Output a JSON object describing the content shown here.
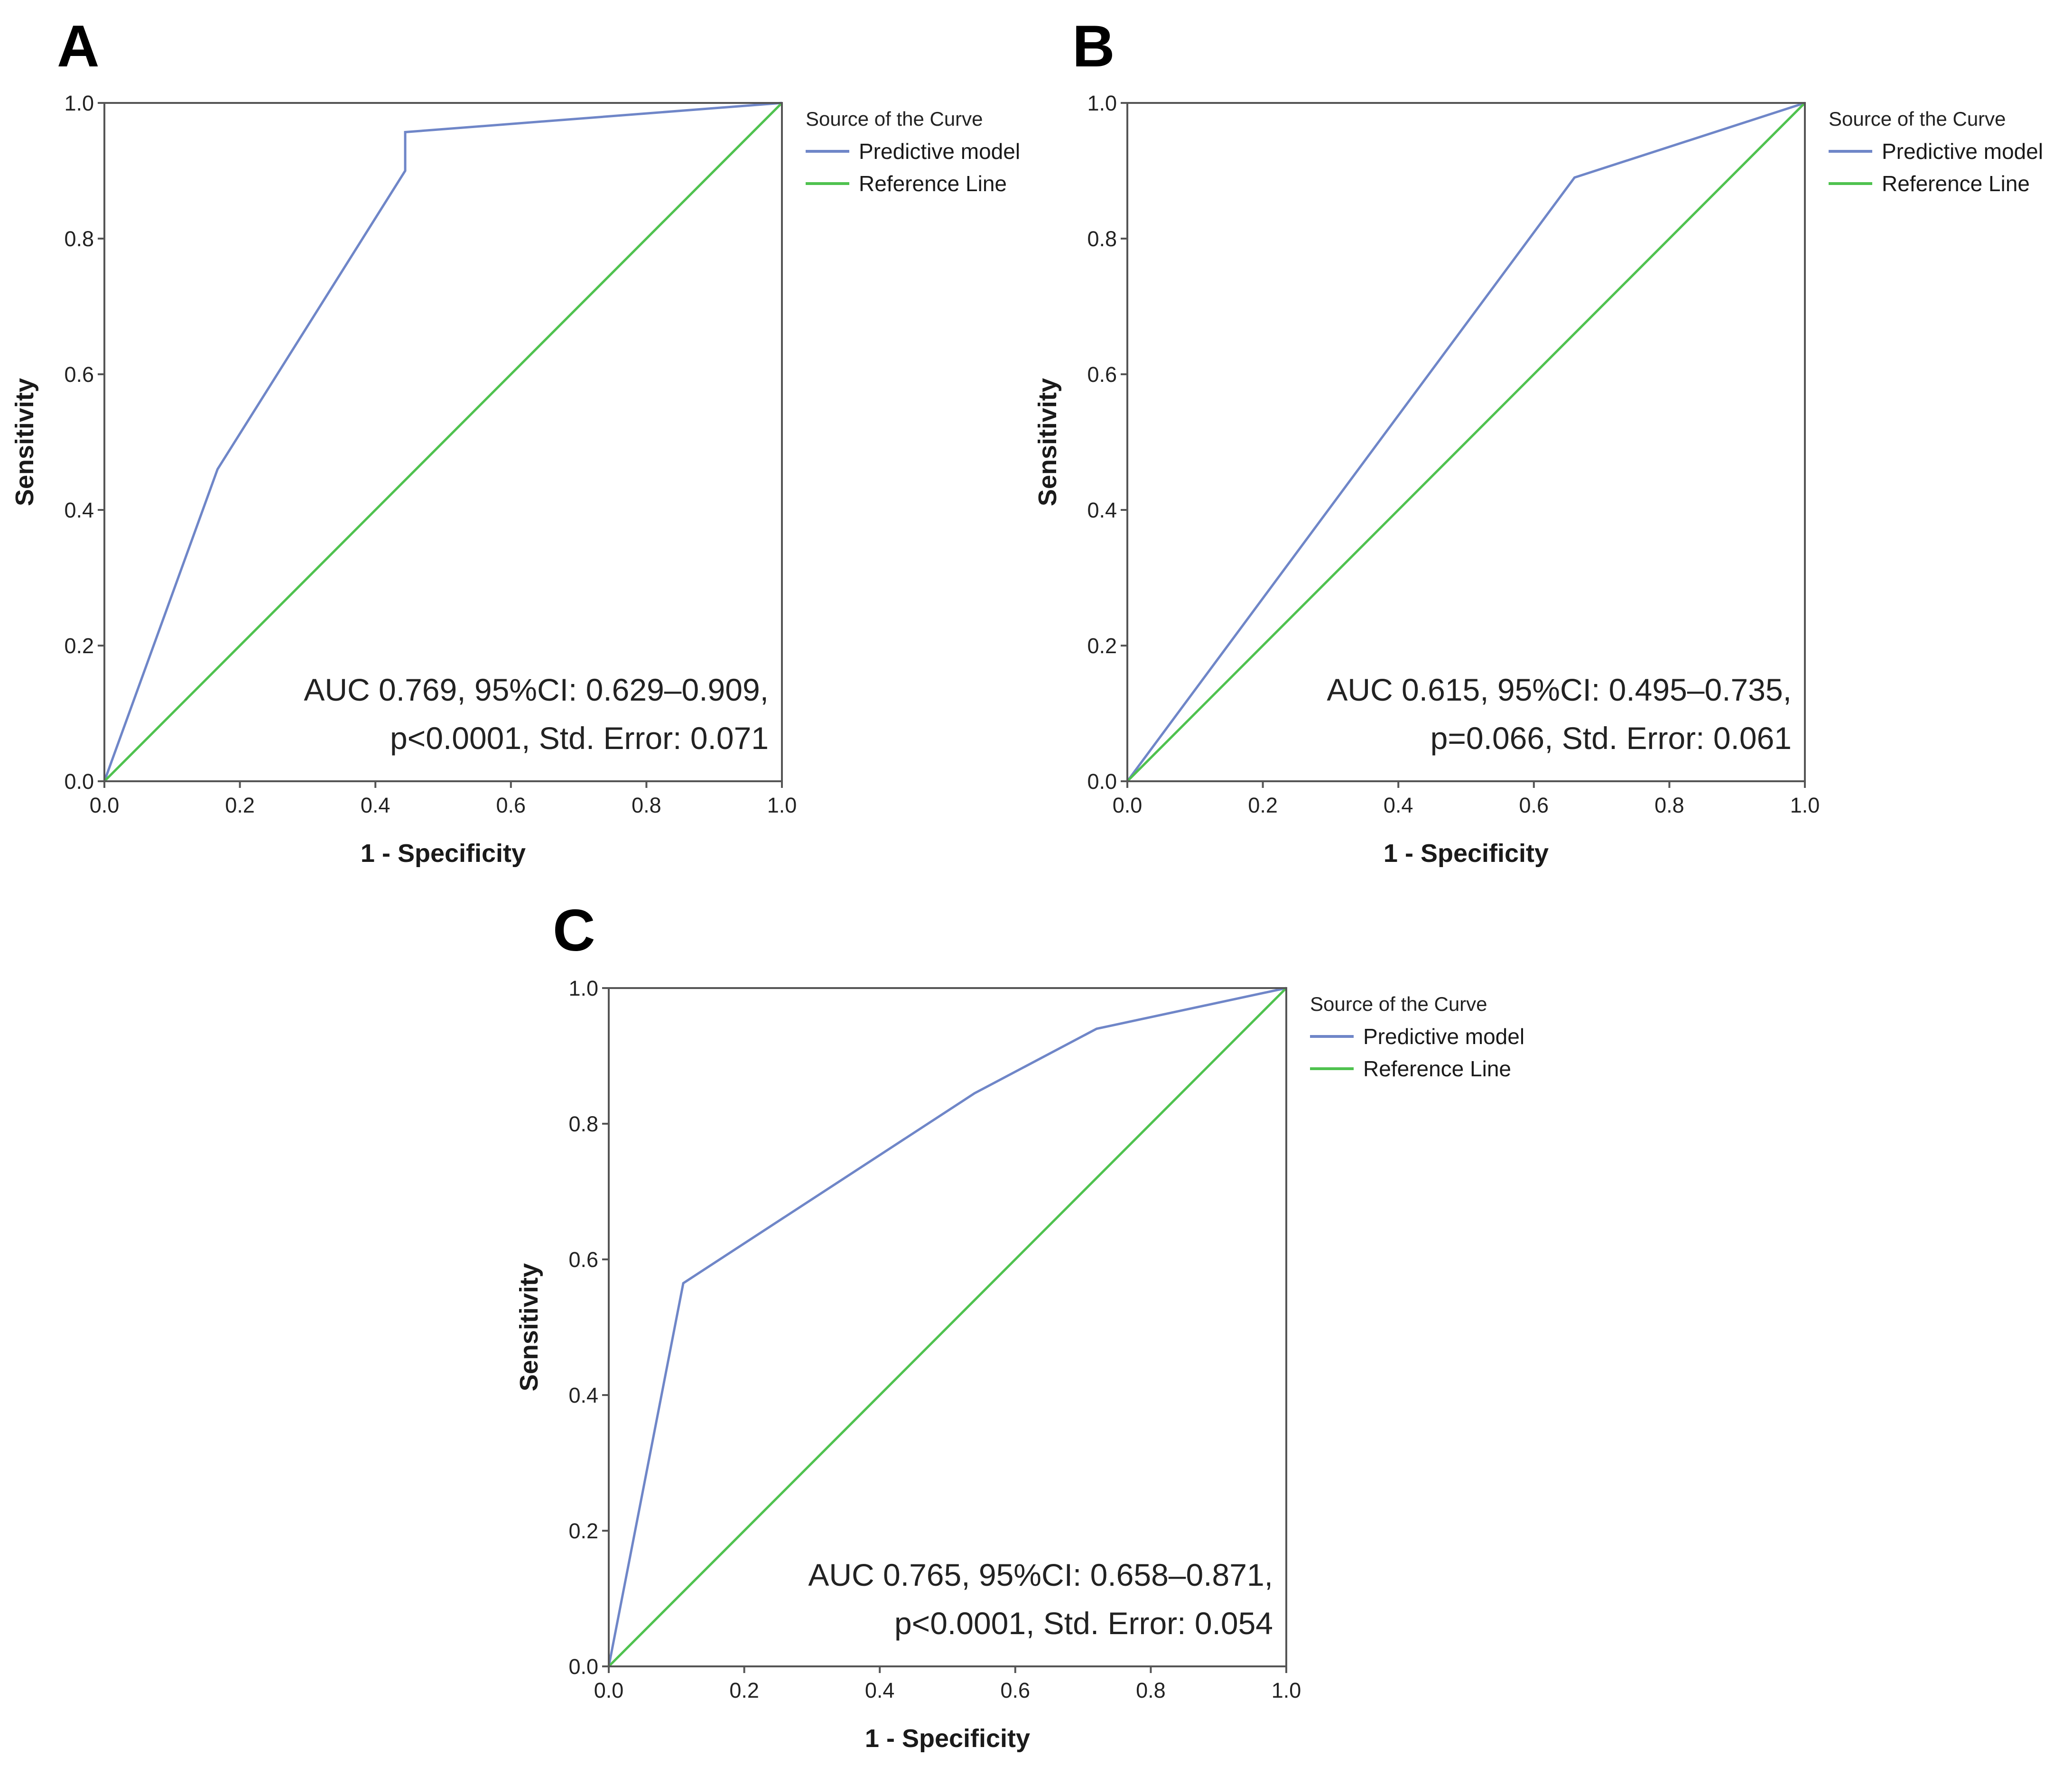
{
  "chart_data": [
    {
      "panel": "A",
      "type": "line",
      "xlabel": "1 - Specificity",
      "ylabel": "Sensitivity",
      "xlim": [
        0,
        1
      ],
      "ylim": [
        0,
        1
      ],
      "xticks": [
        "0.0",
        "0.2",
        "0.4",
        "0.6",
        "0.8",
        "1.0"
      ],
      "yticks": [
        "0.0",
        "0.2",
        "0.4",
        "0.6",
        "0.8",
        "1.0"
      ],
      "grid": false,
      "legend": {
        "title": "Source of the Curve",
        "placement": "right",
        "entries": [
          "Predictive model",
          "Reference Line"
        ]
      },
      "annotation": [
        "AUC 0.769, 95%CI: 0.629–0.909,",
        "p<0.0001, Std. Error: 0.071"
      ],
      "series": [
        {
          "name": "Predictive model",
          "color": "#6f86c8",
          "x": [
            0,
            0.167,
            0.444,
            0.444,
            1
          ],
          "y": [
            0,
            0.46,
            0.9,
            0.957,
            1
          ]
        },
        {
          "name": "Reference Line",
          "color": "#4fc24f",
          "x": [
            0,
            1
          ],
          "y": [
            0,
            1
          ]
        }
      ]
    },
    {
      "panel": "B",
      "type": "line",
      "xlabel": "1 - Specificity",
      "ylabel": "Sensitivity",
      "xlim": [
        0,
        1
      ],
      "ylim": [
        0,
        1
      ],
      "xticks": [
        "0.0",
        "0.2",
        "0.4",
        "0.6",
        "0.8",
        "1.0"
      ],
      "yticks": [
        "0.0",
        "0.2",
        "0.4",
        "0.6",
        "0.8",
        "1.0"
      ],
      "grid": false,
      "legend": {
        "title": "Source of the Curve",
        "placement": "right",
        "entries": [
          "Predictive model",
          "Reference Line"
        ]
      },
      "annotation": [
        "AUC 0.615, 95%CI: 0.495–0.735,",
        "p=0.066, Std. Error: 0.061"
      ],
      "series": [
        {
          "name": "Predictive model",
          "color": "#6f86c8",
          "x": [
            0,
            0.66,
            1
          ],
          "y": [
            0,
            0.89,
            1
          ]
        },
        {
          "name": "Reference Line",
          "color": "#4fc24f",
          "x": [
            0,
            1
          ],
          "y": [
            0,
            1
          ]
        }
      ]
    },
    {
      "panel": "C",
      "type": "line",
      "xlabel": "1 - Specificity",
      "ylabel": "Sensitivity",
      "xlim": [
        0,
        1
      ],
      "ylim": [
        0,
        1
      ],
      "xticks": [
        "0.0",
        "0.2",
        "0.4",
        "0.6",
        "0.8",
        "1.0"
      ],
      "yticks": [
        "0.0",
        "0.2",
        "0.4",
        "0.6",
        "0.8",
        "1.0"
      ],
      "grid": false,
      "legend": {
        "title": "Source of the Curve",
        "placement": "right",
        "entries": [
          "Predictive model",
          "Reference Line"
        ]
      },
      "annotation": [
        "AUC 0.765, 95%CI: 0.658–0.871,",
        "p<0.0001, Std. Error: 0.054"
      ],
      "series": [
        {
          "name": "Predictive model",
          "color": "#6f86c8",
          "x": [
            0,
            0.11,
            0.54,
            0.72,
            1
          ],
          "y": [
            0,
            0.565,
            0.845,
            0.94,
            1
          ]
        },
        {
          "name": "Reference Line",
          "color": "#4fc24f",
          "x": [
            0,
            1
          ],
          "y": [
            0,
            1
          ]
        }
      ]
    }
  ]
}
